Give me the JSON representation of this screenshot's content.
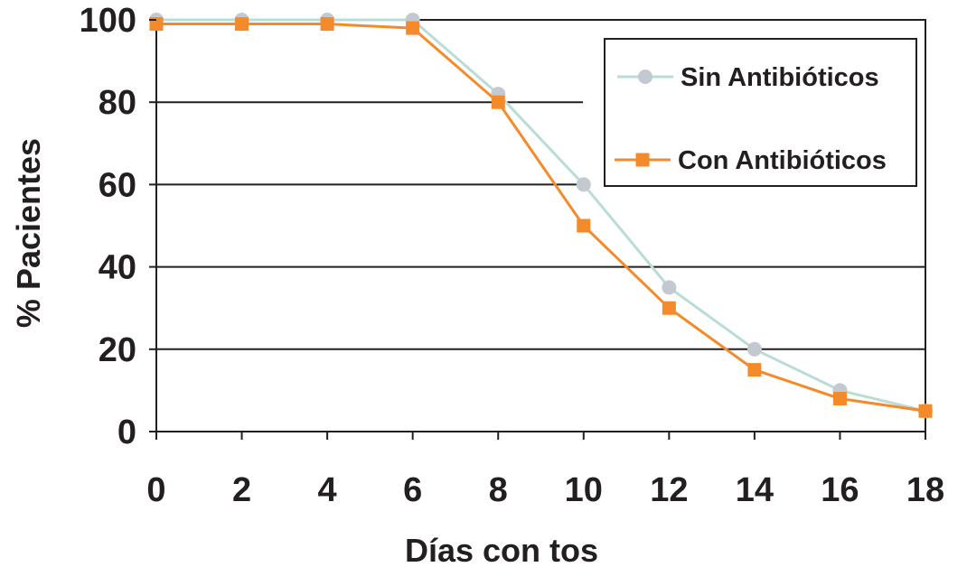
{
  "chart_data": {
    "type": "line",
    "title": "",
    "xlabel": "Días con tos",
    "ylabel": "% Pacientes",
    "x": [
      0,
      2,
      4,
      6,
      8,
      10,
      12,
      14,
      16,
      18
    ],
    "xlim": [
      0,
      18
    ],
    "ylim": [
      0,
      100
    ],
    "xticks": [
      "0",
      "2",
      "4",
      "6",
      "8",
      "10",
      "12",
      "14",
      "16",
      "18"
    ],
    "yticks": [
      "0",
      "20",
      "40",
      "60",
      "80",
      "100"
    ],
    "grid": "horizontal",
    "legend_position": "top-right",
    "series": [
      {
        "name": "Sin Antibióticos",
        "color": "#c4c9d1",
        "line_color": "#b9dcd7",
        "marker": "circle",
        "values": [
          100,
          100,
          100,
          100,
          82,
          60,
          35,
          20,
          10,
          5
        ]
      },
      {
        "name": "Con Antibióticos",
        "color": "#f58a2a",
        "line_color": "#f58a2a",
        "marker": "square",
        "values": [
          99,
          99,
          99,
          98,
          80,
          50,
          30,
          15,
          8,
          5
        ]
      }
    ]
  }
}
